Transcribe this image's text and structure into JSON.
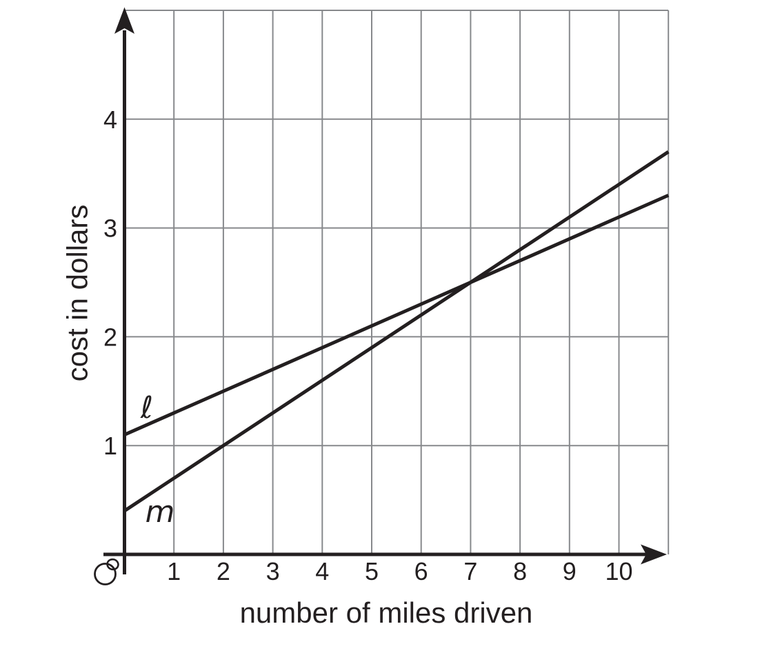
{
  "chart_data": {
    "type": "line",
    "title": "",
    "xlabel": "number of miles driven",
    "ylabel": "cost in dollars",
    "xlim": [
      0,
      11
    ],
    "ylim": [
      0,
      5
    ],
    "x_tick_labels": [
      "1",
      "2",
      "3",
      "4",
      "5",
      "6",
      "7",
      "8",
      "9",
      "10"
    ],
    "y_tick_labels": [
      "1",
      "2",
      "3",
      "4"
    ],
    "grid": "on",
    "origin_label": "O",
    "series": [
      {
        "name": "ℓ",
        "slope": 0.2,
        "y_intercept": 1.1,
        "x": [
          0,
          11
        ],
        "y": [
          1.1,
          3.3
        ]
      },
      {
        "name": "m",
        "slope": 0.3,
        "y_intercept": 0.4,
        "x": [
          0,
          11
        ],
        "y": [
          0.4,
          3.7
        ]
      }
    ],
    "intersection_point": {
      "x": 7,
      "y": 2.5
    }
  },
  "colors": {
    "ink": "#231f20",
    "grid": "#87898c",
    "background": "#ffffff"
  }
}
